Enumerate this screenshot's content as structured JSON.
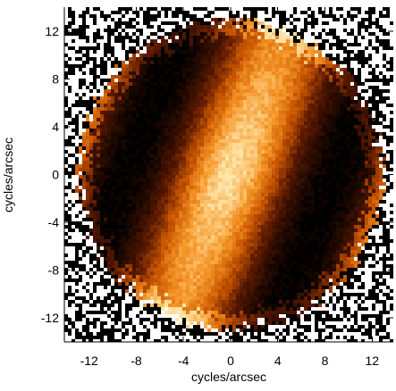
{
  "chart_data": {
    "type": "image",
    "x_label": "cycles/arcsec",
    "y_label": "cycles/arcsec",
    "xlim": [
      -14.1,
      13.8
    ],
    "ylim": [
      -14,
      14
    ],
    "xticks": [
      -12,
      -8,
      -4,
      0,
      4,
      8,
      12
    ],
    "yticks": [
      -12,
      -8,
      -4,
      0,
      4,
      8,
      12
    ]
  }
}
